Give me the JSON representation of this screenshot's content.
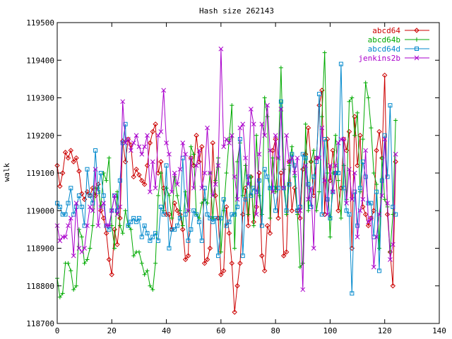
{
  "chart_data": {
    "type": "line",
    "title": "Hash size 262143",
    "xlabel": "",
    "ylabel": "walk",
    "xlim": [
      0,
      140
    ],
    "ylim": [
      118700,
      119500
    ],
    "xticks": [
      0,
      20,
      40,
      60,
      80,
      100,
      120,
      140
    ],
    "yticks": [
      118700,
      118800,
      118900,
      119000,
      119100,
      119200,
      119300,
      119400,
      119500
    ],
    "grid": false,
    "legend_position": "top-right",
    "series": [
      {
        "name": "abcd64",
        "color": "#cc0000",
        "marker": "diamond",
        "x": [
          0,
          1,
          2,
          3,
          4,
          5,
          6,
          7,
          8,
          9,
          10,
          11,
          12,
          13,
          14,
          15,
          16,
          17,
          18,
          19,
          20,
          21,
          22,
          23,
          24,
          25,
          26,
          27,
          28,
          29,
          30,
          31,
          32,
          33,
          34,
          35,
          36,
          37,
          38,
          39,
          40,
          41,
          42,
          43,
          44,
          45,
          46,
          47,
          48,
          49,
          50,
          51,
          52,
          53,
          54,
          55,
          56,
          57,
          58,
          59,
          60,
          61,
          62,
          63,
          64,
          65,
          66,
          67,
          68,
          69,
          70,
          71,
          72,
          73,
          74,
          75,
          76,
          77,
          78,
          79,
          80,
          81,
          82,
          83,
          84,
          85,
          86,
          87,
          88,
          89,
          90,
          91,
          92,
          93,
          94,
          95,
          96,
          97,
          98,
          99,
          100,
          101,
          102,
          103,
          104,
          105,
          106,
          107,
          108,
          109,
          110,
          111,
          112,
          113,
          114,
          115,
          116,
          117,
          118,
          119,
          120,
          121,
          122,
          123,
          124
        ],
        "values": [
          119120,
          119065,
          119100,
          119155,
          119140,
          119160,
          119130,
          119140,
          119105,
          119045,
          119030,
          119050,
          119040,
          119060,
          119040,
          119070,
          119000,
          118980,
          118940,
          118870,
          118830,
          118950,
          118910,
          118980,
          119185,
          119130,
          119190,
          119175,
          119090,
          119110,
          119095,
          119080,
          119070,
          119120,
          119180,
          119210,
          119230,
          119100,
          119130,
          119060,
          118990,
          118990,
          118950,
          119020,
          119000,
          118990,
          118950,
          118870,
          118880,
          119140,
          119120,
          119200,
          119130,
          119170,
          118860,
          118870,
          118900,
          119180,
          119040,
          118980,
          118830,
          118840,
          119010,
          118940,
          118860,
          118730,
          118800,
          118860,
          118990,
          119060,
          118960,
          119090,
          118970,
          119010,
          119100,
          118880,
          118840,
          118960,
          118940,
          119160,
          119190,
          118980,
          119100,
          118880,
          118890,
          119130,
          119000,
          119060,
          119000,
          118980,
          119110,
          119150,
          119220,
          119130,
          119040,
          119140,
          119280,
          119320,
          118990,
          119190,
          119080,
          119160,
          119100,
          119000,
          119060,
          119190,
          119160,
          119210,
          118900,
          119250,
          119120,
          119200,
          119010,
          118990,
          118960,
          118980,
          119000,
          119160,
          119210,
          119140,
          119360,
          118990,
          118890,
          118800,
          119130
        ]
      },
      {
        "name": "abcd64b",
        "color": "#00aa00",
        "marker": "plus",
        "x": [
          0,
          1,
          2,
          3,
          4,
          5,
          6,
          7,
          8,
          9,
          10,
          11,
          12,
          13,
          14,
          15,
          16,
          17,
          18,
          19,
          20,
          21,
          22,
          23,
          24,
          25,
          26,
          27,
          28,
          29,
          30,
          31,
          32,
          33,
          34,
          35,
          36,
          37,
          38,
          39,
          40,
          41,
          42,
          43,
          44,
          45,
          46,
          47,
          48,
          49,
          50,
          51,
          52,
          53,
          54,
          55,
          56,
          57,
          58,
          59,
          60,
          61,
          62,
          63,
          64,
          65,
          66,
          67,
          68,
          69,
          70,
          71,
          72,
          73,
          74,
          75,
          76,
          77,
          78,
          79,
          80,
          81,
          82,
          83,
          84,
          85,
          86,
          87,
          88,
          89,
          90,
          91,
          92,
          93,
          94,
          95,
          96,
          97,
          98,
          99,
          100,
          101,
          102,
          103,
          104,
          105,
          106,
          107,
          108,
          109,
          110,
          111,
          112,
          113,
          114,
          115,
          116,
          117,
          118,
          119,
          120,
          121,
          122,
          123,
          124
        ],
        "values": [
          118820,
          118770,
          118780,
          118860,
          118860,
          118840,
          118790,
          118800,
          118950,
          118930,
          118860,
          118870,
          118900,
          118960,
          119060,
          119060,
          119010,
          119100,
          119080,
          119140,
          118960,
          118900,
          119050,
          118960,
          118940,
          119000,
          118960,
          118950,
          118880,
          118890,
          118890,
          118860,
          118830,
          118840,
          118800,
          118790,
          118860,
          119040,
          119100,
          119000,
          119060,
          119040,
          118980,
          119090,
          119040,
          119000,
          118960,
          119050,
          119000,
          119170,
          119150,
          118990,
          118980,
          119020,
          119030,
          119020,
          119100,
          118980,
          119080,
          119140,
          118890,
          119000,
          119100,
          119190,
          119280,
          118900,
          119130,
          119180,
          119040,
          119120,
          118990,
          119090,
          118960,
          119200,
          119040,
          118990,
          119300,
          119250,
          118980,
          119140,
          119050,
          119140,
          119380,
          119110,
          118990,
          119120,
          119170,
          119090,
          118990,
          118850,
          118860,
          119230,
          119000,
          119130,
          119160,
          119000,
          119050,
          119250,
          119420,
          119100,
          118930,
          119100,
          119200,
          119080,
          118980,
          119120,
          119030,
          119290,
          119300,
          119200,
          119260,
          119050,
          119190,
          119340,
          119300,
          119220,
          119100,
          119070,
          118900,
          119140,
          119030,
          119010,
          118890,
          118990,
          119240
        ]
      },
      {
        "name": "abcd64d",
        "color": "#0088cc",
        "marker": "square",
        "x": [
          0,
          1,
          2,
          3,
          4,
          5,
          6,
          7,
          8,
          9,
          10,
          11,
          12,
          13,
          14,
          15,
          16,
          17,
          18,
          19,
          20,
          21,
          22,
          23,
          24,
          25,
          26,
          27,
          28,
          29,
          30,
          31,
          32,
          33,
          34,
          35,
          36,
          37,
          38,
          39,
          40,
          41,
          42,
          43,
          44,
          45,
          46,
          47,
          48,
          49,
          50,
          51,
          52,
          53,
          54,
          55,
          56,
          57,
          58,
          59,
          60,
          61,
          62,
          63,
          64,
          65,
          66,
          67,
          68,
          69,
          70,
          71,
          72,
          73,
          74,
          75,
          76,
          77,
          78,
          79,
          80,
          81,
          82,
          83,
          84,
          85,
          86,
          87,
          88,
          89,
          90,
          91,
          92,
          93,
          94,
          95,
          96,
          97,
          98,
          99,
          100,
          101,
          102,
          103,
          104,
          105,
          106,
          107,
          108,
          109,
          110,
          111,
          112,
          113,
          114,
          115,
          116,
          117,
          118,
          119,
          120,
          121,
          122,
          123,
          124
        ],
        "values": [
          119020,
          119010,
          118990,
          118990,
          119020,
          119060,
          118990,
          119010,
          119040,
          119010,
          118960,
          119110,
          119040,
          119020,
          119160,
          119050,
          119100,
          119040,
          118960,
          118950,
          119000,
          119040,
          119000,
          119080,
          119180,
          119230,
          118960,
          118970,
          118980,
          118970,
          118980,
          118930,
          118960,
          118940,
          118920,
          118930,
          118940,
          118920,
          119010,
          118990,
          119120,
          118900,
          118950,
          118950,
          118960,
          118980,
          119140,
          118990,
          118920,
          118950,
          119000,
          118990,
          118970,
          118920,
          119060,
          118990,
          118980,
          118970,
          118980,
          118880,
          118980,
          119030,
          118960,
          118970,
          118990,
          118990,
          119010,
          119190,
          118880,
          119030,
          119090,
          119040,
          119060,
          119050,
          119080,
          118960,
          119110,
          119090,
          119060,
          119060,
          119000,
          119060,
          119290,
          119060,
          119000,
          119070,
          119150,
          119120,
          119000,
          119010,
          119150,
          119140,
          119070,
          119010,
          119090,
          119130,
          119310,
          118990,
          119190,
          119030,
          118980,
          119050,
          119100,
          119100,
          119390,
          119060,
          119000,
          118990,
          118780,
          119050,
          118960,
          119060,
          119130,
          119090,
          119020,
          119020,
          118930,
          119050,
          118840,
          119080,
          119200,
          119090,
          119280,
          119010,
          118990
        ]
      },
      {
        "name": "jenkins2b",
        "color": "#aa00cc",
        "marker": "cross",
        "x": [
          0,
          1,
          2,
          3,
          4,
          5,
          6,
          7,
          8,
          9,
          10,
          11,
          12,
          13,
          14,
          15,
          16,
          17,
          18,
          19,
          20,
          21,
          22,
          23,
          24,
          25,
          26,
          27,
          28,
          29,
          30,
          31,
          32,
          33,
          34,
          35,
          36,
          37,
          38,
          39,
          40,
          41,
          42,
          43,
          44,
          45,
          46,
          47,
          48,
          49,
          50,
          51,
          52,
          53,
          54,
          55,
          56,
          57,
          58,
          59,
          60,
          61,
          62,
          63,
          64,
          65,
          66,
          67,
          68,
          69,
          70,
          71,
          72,
          73,
          74,
          75,
          76,
          77,
          78,
          79,
          80,
          81,
          82,
          83,
          84,
          85,
          86,
          87,
          88,
          89,
          90,
          91,
          92,
          93,
          94,
          95,
          96,
          97,
          98,
          99,
          100,
          101,
          102,
          103,
          104,
          105,
          106,
          107,
          108,
          109,
          110,
          111,
          112,
          113,
          114,
          115,
          116,
          117,
          118,
          119,
          120,
          121,
          122,
          123,
          124
        ],
        "values": [
          118960,
          118920,
          118930,
          118930,
          118960,
          118980,
          118880,
          119020,
          118900,
          118890,
          118900,
          118960,
          119010,
          119000,
          119110,
          118960,
          119010,
          119020,
          118960,
          118960,
          119000,
          119040,
          118990,
          119010,
          119290,
          119180,
          119190,
          119160,
          119180,
          119200,
          119170,
          119150,
          119170,
          119200,
          119050,
          119130,
          119060,
          119200,
          119210,
          119320,
          119180,
          119150,
          119050,
          119100,
          119070,
          119110,
          119180,
          119150,
          119000,
          119140,
          119060,
          119120,
          119160,
          119060,
          119100,
          119220,
          119100,
          119040,
          119070,
          119120,
          119430,
          119170,
          119190,
          119180,
          119200,
          119090,
          119030,
          119220,
          119230,
          119140,
          119070,
          119270,
          119230,
          118990,
          119150,
          119230,
          119200,
          119280,
          119160,
          119050,
          119200,
          119140,
          119270,
          119060,
          119200,
          119130,
          119140,
          119100,
          119140,
          119000,
          118790,
          119120,
          119030,
          119060,
          118900,
          119140,
          119140,
          119220,
          119080,
          118990,
          119120,
          119050,
          119120,
          119180,
          119190,
          119190,
          119020,
          119110,
          119030,
          119100,
          118930,
          119000,
          119030,
          119160,
          118970,
          118980,
          118850,
          118930,
          118990,
          119040,
          119190,
          119020,
          118870,
          118910,
          119150
        ]
      }
    ]
  }
}
